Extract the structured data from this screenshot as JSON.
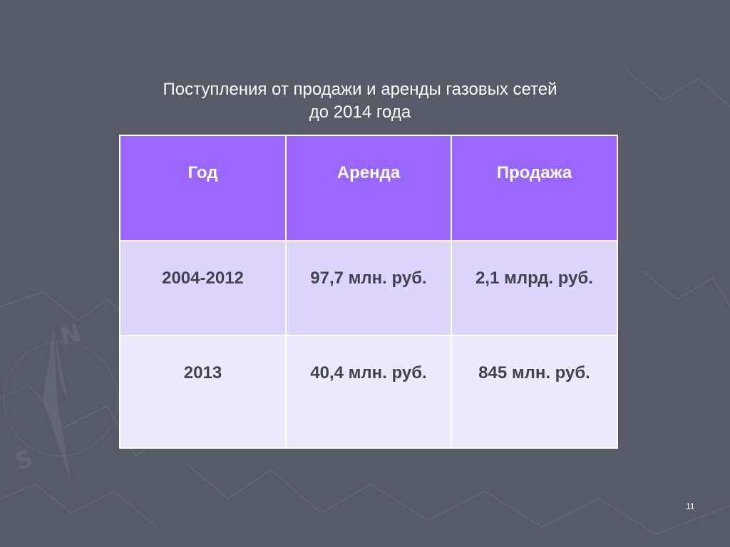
{
  "slide": {
    "title_line1": "Поступления от продажи и аренды газовых сетей",
    "title_line2": "до 2014 года",
    "page_number": "11"
  },
  "table": {
    "headers": [
      "Год",
      "Аренда",
      "Продажа"
    ],
    "rows": [
      [
        "2004-2012",
        "97,7 млн. руб.",
        "2,1 млрд. руб."
      ],
      [
        "2013",
        "40,4 млн. руб.",
        "845 млн. руб."
      ]
    ]
  },
  "colors": {
    "background": "#575a67",
    "header": "#9966ff",
    "row1": "#ddd5fb",
    "row2": "#ede9fd",
    "text_dark": "#3f4452"
  },
  "decoration": {
    "background_art": "faded-compass-and-map-lines"
  }
}
